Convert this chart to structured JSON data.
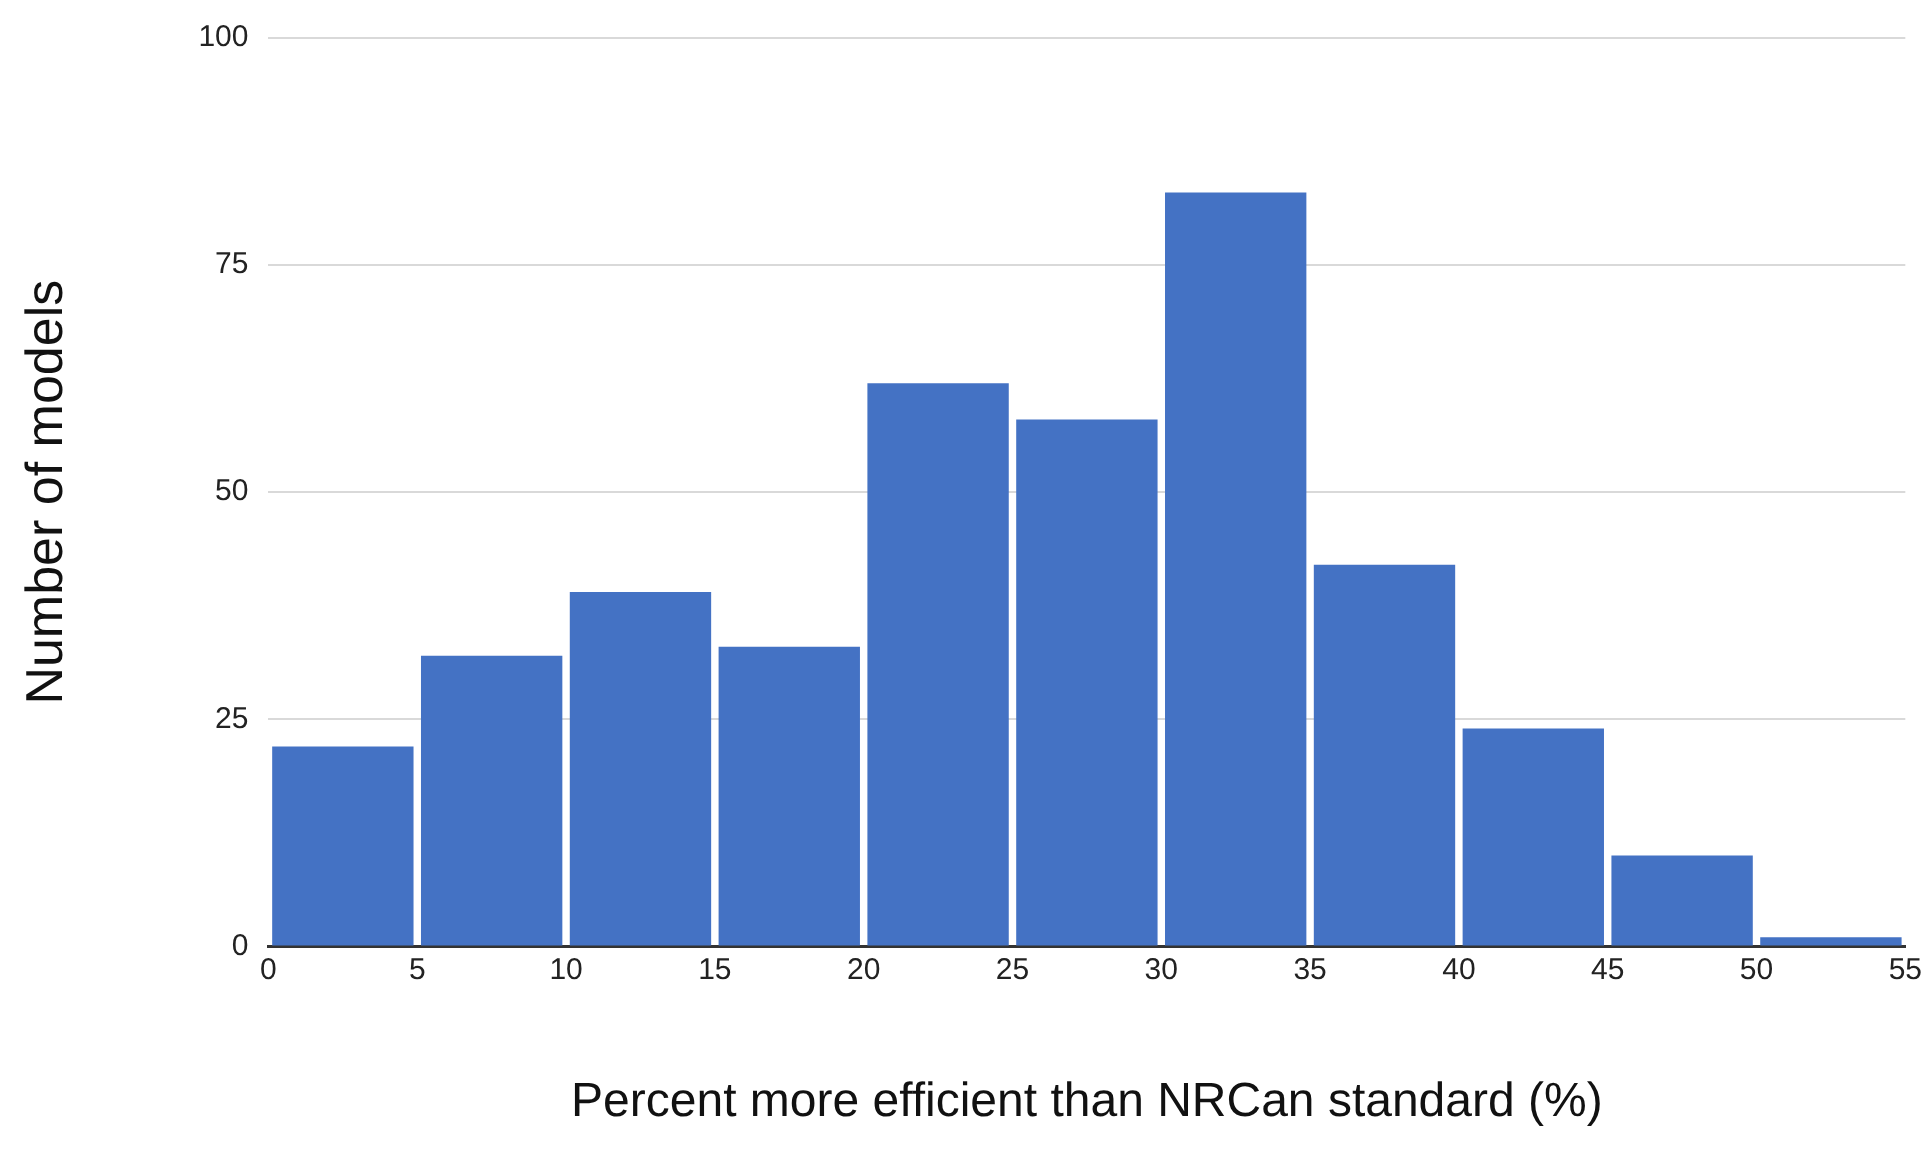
{
  "chart_data": {
    "type": "histogram",
    "xlabel": "Percent more efficient than NRCan standard (%)",
    "ylabel": "Number of models",
    "bins": [
      0,
      5,
      10,
      15,
      20,
      25,
      30,
      35,
      40,
      45,
      50,
      55
    ],
    "values": [
      22,
      32,
      39,
      33,
      62,
      58,
      83,
      42,
      24,
      10,
      1
    ],
    "color": "#4472c4",
    "xlim": [
      0,
      55
    ],
    "xticks": [
      0,
      5,
      10,
      15,
      20,
      25,
      30,
      35,
      40,
      45,
      50,
      55
    ],
    "ylim": [
      0,
      100
    ],
    "yticks": [
      0,
      25,
      50,
      75,
      100
    ],
    "grid": "y",
    "legend": false
  }
}
